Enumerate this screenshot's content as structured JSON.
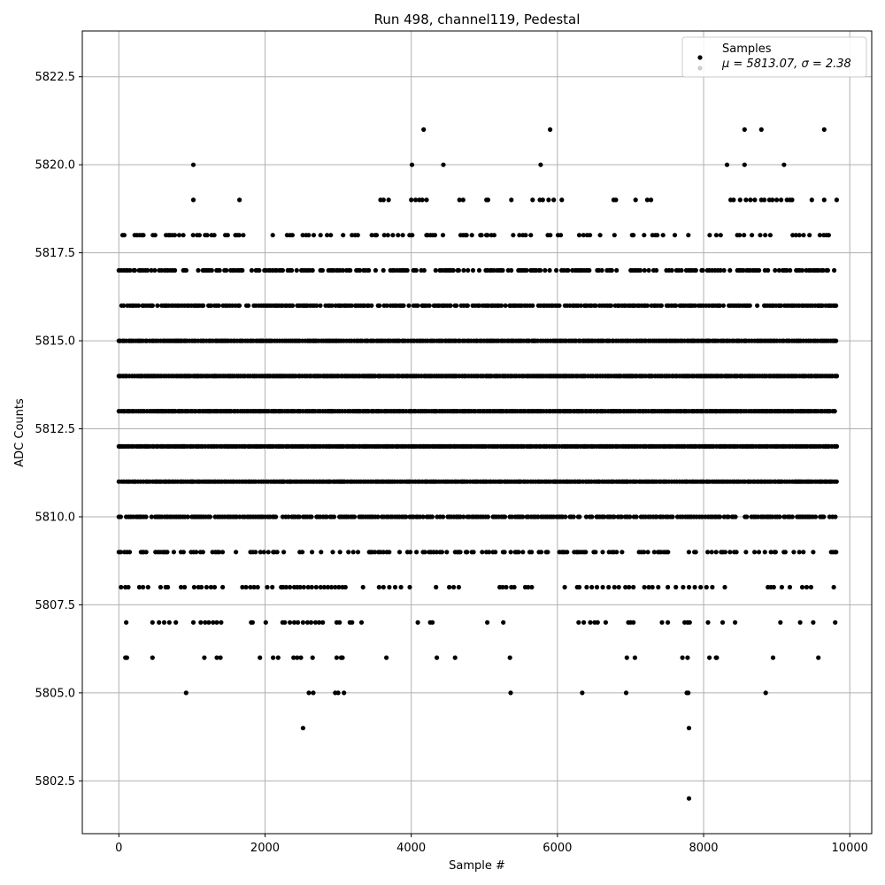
{
  "chart_data": {
    "type": "scatter",
    "title": "Run 498, channel119, Pedestal",
    "xlabel": "Sample #",
    "ylabel": "ADC Counts",
    "xlim": [
      -500,
      10300
    ],
    "ylim": [
      5801.0,
      5823.8
    ],
    "x_ticks": [
      0,
      2000,
      4000,
      6000,
      8000,
      10000
    ],
    "x_tick_labels": [
      "0",
      "2000",
      "4000",
      "6000",
      "8000",
      "10000"
    ],
    "y_ticks": [
      5802.5,
      5805.0,
      5807.5,
      5810.0,
      5812.5,
      5815.0,
      5817.5,
      5820.0,
      5822.5
    ],
    "y_tick_labels": [
      "5802.5",
      "5805.0",
      "5807.5",
      "5810.0",
      "5812.5",
      "5815.0",
      "5817.5",
      "5820.0",
      "5822.5"
    ],
    "grid": true,
    "marker_color": "#000000",
    "series": [
      {
        "name": "Samples",
        "x_range": [
          0,
          9825
        ],
        "levels": [
          {
            "y": 5802,
            "x": [
              7800
            ]
          },
          {
            "y": 5804,
            "x": [
              2520,
              7800
            ]
          },
          {
            "y": 5805,
            "x": [
              920,
              2600,
              2660,
              2960,
              3000,
              3080,
              5360,
              6340,
              6940,
              7770,
              7790,
              8850
            ]
          },
          {
            "y": 5806,
            "x": [
              90,
              110,
              460,
              1170,
              1340,
              1390,
              1930,
              2110,
              2180,
              2390,
              2440,
              2490,
              2650,
              2980,
              3040,
              3060,
              3660,
              4350,
              4600,
              5350,
              6950,
              7060,
              7710,
              7780,
              8080,
              8170,
              8180,
              8950,
              9570
            ]
          },
          {
            "y": 5807,
            "x": [
              100,
              460,
              550,
              620,
              690,
              780,
              1020,
              1120,
              1180,
              1230,
              1290,
              1340,
              1400,
              1810,
              1830,
              2010,
              2240,
              2270,
              2340,
              2400,
              2450,
              2520,
              2580,
              2630,
              2690,
              2740,
              2790,
              2980,
              3020,
              3160,
              3190,
              3320,
              4090,
              4260,
              4290,
              5040,
              5260,
              6290,
              6360,
              6450,
              6510,
              6550,
              6660,
              6970,
              7000,
              7040,
              7430,
              7510,
              7740,
              7780,
              7810,
              8060,
              8260,
              8430,
              9050,
              9320,
              9500,
              9800
            ]
          },
          {
            "y": 5808,
            "x": [
              30,
              90,
              130,
              280,
              330,
              400,
              570,
              640,
              670,
              850,
              900,
              1030,
              1090,
              1130,
              1200,
              1260,
              1310,
              1420,
              1690,
              1740,
              1800,
              1850,
              1900,
              2030,
              2100,
              2220,
              2250,
              2290,
              2340,
              2400,
              2440,
              2480,
              2530,
              2590,
              2640,
              2700,
              2760,
              2810,
              2860,
              2910,
              2960,
              3010,
              3060,
              3100,
              3340,
              3560,
              3620,
              3700,
              3780,
              3860,
              3980,
              4340,
              4520,
              4580,
              4650,
              5210,
              5250,
              5300,
              5370,
              5410,
              5560,
              5600,
              5650,
              6100,
              6270,
              6300,
              6400,
              6470,
              6540,
              6620,
              6700,
              6780,
              6840,
              6930,
              6980,
              7040,
              7190,
              7250,
              7300,
              7380,
              7510,
              7620,
              7720,
              7800,
              7880,
              7960,
              8040,
              8120,
              8290,
              8880,
              8920,
              8960,
              9070,
              9180,
              9350,
              9410,
              9470,
              9780
            ]
          },
          {
            "y": 5820,
            "x": [
              1020,
              4010,
              4440,
              5770,
              8320,
              8560,
              9100
            ]
          },
          {
            "y": 5821,
            "x": [
              4170,
              5900,
              8560,
              8790,
              9650
            ]
          },
          {
            "y": 5819,
            "x": [
              1020,
              1650,
              3580,
              3620,
              3690,
              4000,
              4060,
              4110,
              4150,
              4210,
              4660,
              4710,
              5030,
              5050,
              5370,
              5660,
              5760,
              5800,
              5880,
              5950,
              6060,
              6770,
              6800,
              7070,
              7230,
              7280,
              8370,
              8410,
              8500,
              8580,
              8640,
              8700,
              8790,
              8830,
              8900,
              8940,
              9000,
              9060,
              9140,
              9180,
              9210,
              9480,
              9650,
              9820
            ]
          }
        ],
        "dense_levels": [
          {
            "y": 5809,
            "density": 0.4
          },
          {
            "y": 5810,
            "density": 0.85
          },
          {
            "y": 5811,
            "density": 1.0
          },
          {
            "y": 5812,
            "density": 1.0
          },
          {
            "y": 5813,
            "density": 1.0
          },
          {
            "y": 5814,
            "density": 1.0
          },
          {
            "y": 5815,
            "density": 1.0
          },
          {
            "y": 5816,
            "density": 0.85
          },
          {
            "y": 5817,
            "density": 0.65
          },
          {
            "y": 5818,
            "density": 0.3
          }
        ]
      }
    ],
    "legend": {
      "placement": "top-right",
      "entries": [
        {
          "label": "Samples",
          "marker_color": "#000000"
        },
        {
          "label": "μ = 5813.07, σ = 2.38",
          "marker_color": "#cccccc"
        }
      ]
    }
  }
}
